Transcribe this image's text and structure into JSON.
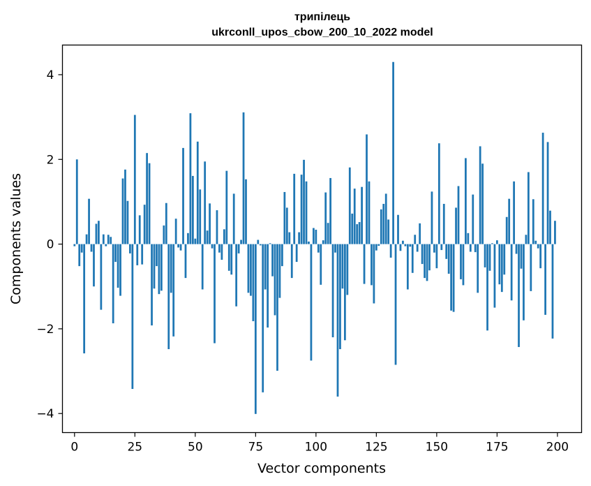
{
  "chart_data": {
    "type": "bar",
    "title": "трипілець",
    "subtitle": "ukrconll_upos_cbow_200_10_2022 model",
    "xlabel": "Vector components",
    "ylabel": "Components values",
    "xlim": [
      -5,
      210
    ],
    "ylim": [
      -4.45,
      4.7
    ],
    "xticks": [
      0,
      25,
      50,
      75,
      100,
      125,
      150,
      175,
      200
    ],
    "xtick_labels": [
      "0",
      "25",
      "50",
      "75",
      "100",
      "125",
      "150",
      "175",
      "200"
    ],
    "yticks": [
      -4,
      -2,
      0,
      2,
      4
    ],
    "ytick_labels": [
      "−4",
      "−2",
      "0",
      "2",
      "4"
    ],
    "bar_color": "#1f77b4",
    "bar_width": 0.8,
    "grid": false,
    "values": [
      -0.05,
      2.0,
      -0.52,
      -0.2,
      -2.58,
      0.23,
      1.07,
      -0.18,
      -1.0,
      0.48,
      0.55,
      -1.55,
      0.23,
      -0.05,
      0.22,
      0.17,
      -1.87,
      -0.42,
      -1.03,
      -1.22,
      1.55,
      1.76,
      1.02,
      -0.22,
      -3.42,
      3.05,
      -0.5,
      0.68,
      -0.48,
      0.93,
      2.15,
      1.91,
      -1.92,
      -1.05,
      -0.52,
      -1.18,
      -1.1,
      0.44,
      0.97,
      -2.48,
      -1.15,
      -2.18,
      0.6,
      -0.08,
      -0.15,
      2.27,
      -0.8,
      0.26,
      3.09,
      1.61,
      0.13,
      2.42,
      1.29,
      -1.07,
      1.95,
      0.32,
      0.96,
      -0.1,
      -2.34,
      0.8,
      -0.2,
      -0.37,
      0.35,
      1.73,
      -0.63,
      -0.72,
      1.19,
      -1.47,
      -0.22,
      0.1,
      3.11,
      1.53,
      -1.15,
      -1.22,
      -1.82,
      -4.01,
      0.1,
      -0.03,
      -3.5,
      -1.07,
      -1.97,
      0.02,
      -0.76,
      -1.68,
      -2.99,
      -1.27,
      -0.52,
      1.23,
      0.86,
      0.28,
      -0.8,
      1.66,
      -0.42,
      0.28,
      1.64,
      1.99,
      1.48,
      0.06,
      -2.75,
      0.38,
      0.34,
      -0.2,
      -0.96,
      0.09,
      1.22,
      0.5,
      1.56,
      -2.2,
      -0.2,
      -3.6,
      -2.48,
      -1.05,
      -2.27,
      -1.2,
      1.81,
      0.72,
      1.31,
      0.47,
      0.52,
      1.35,
      -0.94,
      2.59,
      1.48,
      -0.97,
      -1.4,
      -0.15,
      -0.04,
      0.82,
      0.95,
      1.19,
      0.58,
      -0.32,
      4.3,
      -2.85,
      0.69,
      -0.16,
      0.08,
      -0.05,
      -1.07,
      -0.06,
      -0.68,
      0.22,
      -0.18,
      0.49,
      -0.47,
      -0.8,
      -0.87,
      -0.62,
      1.24,
      -0.2,
      -0.57,
      2.38,
      -0.14,
      0.95,
      -0.35,
      -0.7,
      -1.57,
      -1.6,
      0.86,
      1.37,
      -0.83,
      -0.97,
      2.03,
      0.26,
      -0.18,
      1.17,
      -0.19,
      -1.15,
      2.31,
      1.9,
      -0.55,
      -2.04,
      -0.63,
      0.02,
      -1.5,
      0.09,
      -0.95,
      -1.13,
      -0.72,
      0.64,
      1.07,
      -1.33,
      1.48,
      -0.23,
      -2.43,
      -0.58,
      -1.8,
      0.22,
      1.7,
      -1.11,
      1.06,
      0.08,
      -0.1,
      -0.57,
      2.63,
      -1.67,
      2.41,
      0.79,
      -2.23,
      0.55
    ]
  }
}
